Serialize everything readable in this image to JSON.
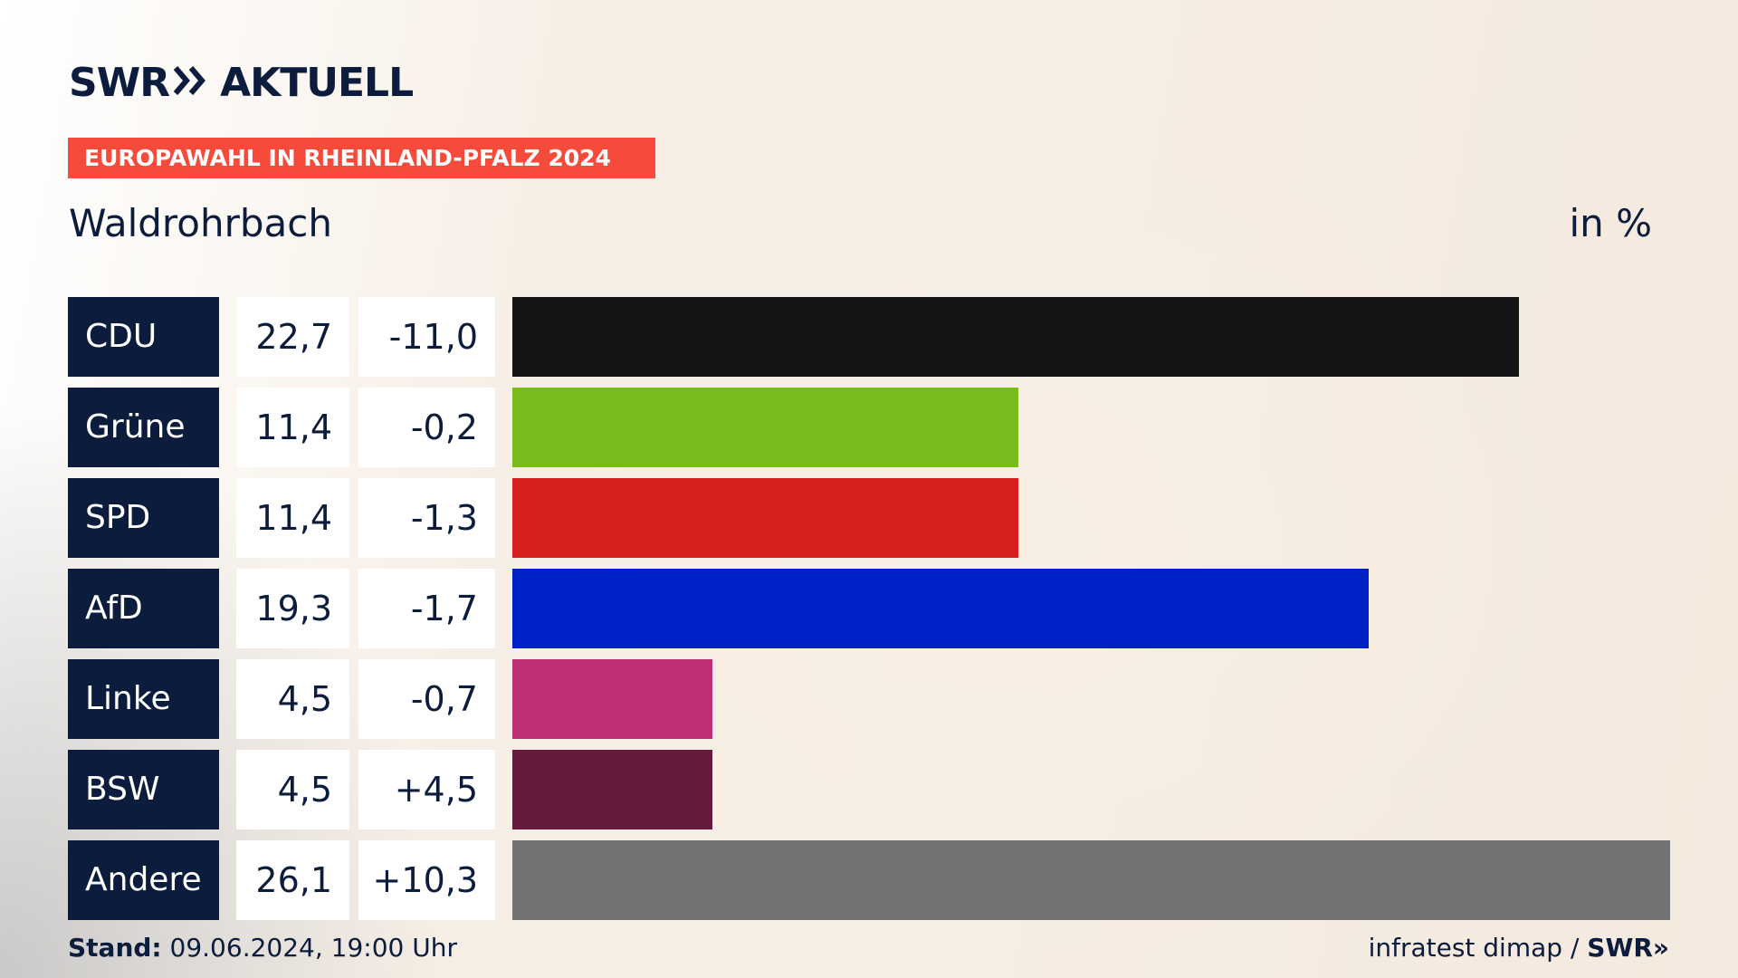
{
  "header": {
    "logo": "SWR» AKTUELL",
    "logo_left": "SWR",
    "logo_right": "AKTUELL",
    "badge": "EUROPAWAHL IN RHEINLAND-PFALZ 2024",
    "region": "Waldrohrbach",
    "unit": "in %"
  },
  "chart_data": {
    "type": "bar",
    "title": "Waldrohrbach",
    "ylabel": "in %",
    "categories": [
      "CDU",
      "Grüne",
      "SPD",
      "AfD",
      "Linke",
      "BSW",
      "Andere"
    ],
    "values": [
      22.7,
      11.4,
      11.4,
      19.3,
      4.5,
      4.5,
      26.1
    ],
    "value_labels": [
      "22,7",
      "11,4",
      "11,4",
      "19,3",
      "4,5",
      "4,5",
      "26,1"
    ],
    "changes": [
      -11.0,
      -0.2,
      -1.3,
      -1.7,
      -0.7,
      4.5,
      10.3
    ],
    "change_labels": [
      "-11,0",
      "-0,2",
      "-1,3",
      "-1,7",
      "-0,7",
      "+4,5",
      "+10,3"
    ],
    "colors": [
      "#141414",
      "#78bc1b",
      "#d71f1f",
      "#0021c8",
      "#bd3075",
      "#661a3d",
      "#727375"
    ]
  },
  "footer": {
    "stand_label": "Stand:",
    "stand_value": "09.06.2024, 19:00 Uhr",
    "source": "infratest dimap /",
    "source_logo": "SWR»"
  }
}
